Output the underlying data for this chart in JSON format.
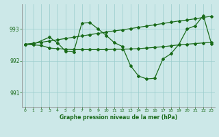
{
  "title": "Graphe pression niveau de la mer (hPa)",
  "bg_color": "#cce8e8",
  "grid_color": "#99cccc",
  "line_color": "#1a6b1a",
  "x_ticks": [
    0,
    1,
    2,
    3,
    4,
    5,
    6,
    7,
    8,
    9,
    10,
    11,
    12,
    13,
    14,
    15,
    16,
    17,
    18,
    19,
    20,
    21,
    22,
    23
  ],
  "y_ticks": [
    991,
    992,
    993
  ],
  "ylim": [
    990.55,
    993.78
  ],
  "xlim": [
    -0.4,
    23.4
  ],
  "line1_x": [
    0,
    1,
    2,
    3,
    4,
    5,
    6,
    7,
    8,
    9,
    10,
    11,
    12,
    13,
    14,
    15,
    16,
    17,
    18,
    19,
    20,
    21,
    22,
    23
  ],
  "line1_y": [
    992.52,
    992.55,
    992.58,
    992.62,
    992.66,
    992.7,
    992.74,
    992.78,
    992.82,
    992.86,
    992.9,
    992.94,
    992.97,
    993.01,
    993.05,
    993.09,
    993.13,
    993.17,
    993.21,
    993.25,
    993.28,
    993.32,
    993.36,
    993.4
  ],
  "line2_x": [
    0,
    1,
    2,
    3,
    4,
    5,
    6,
    7,
    8,
    9,
    10,
    11,
    12,
    13,
    14,
    15,
    16,
    17,
    18,
    19,
    20,
    21,
    22,
    23
  ],
  "line2_y": [
    992.52,
    992.5,
    992.48,
    992.4,
    992.38,
    992.36,
    992.35,
    992.35,
    992.35,
    992.35,
    992.35,
    992.36,
    992.36,
    992.37,
    992.38,
    992.4,
    992.42,
    992.44,
    992.47,
    992.5,
    992.52,
    992.54,
    992.56,
    992.58
  ],
  "line3_x": [
    0,
    1,
    3,
    4,
    5,
    6,
    7,
    8,
    9,
    10,
    11,
    12,
    13,
    14,
    15,
    16,
    17,
    18,
    19,
    20,
    21,
    22,
    23
  ],
  "line3_y": [
    992.52,
    992.52,
    992.74,
    992.56,
    992.3,
    992.28,
    993.18,
    993.2,
    993.0,
    992.8,
    992.57,
    992.45,
    991.85,
    991.52,
    991.43,
    991.45,
    992.05,
    992.22,
    992.52,
    993.0,
    993.1,
    993.42,
    992.54
  ]
}
